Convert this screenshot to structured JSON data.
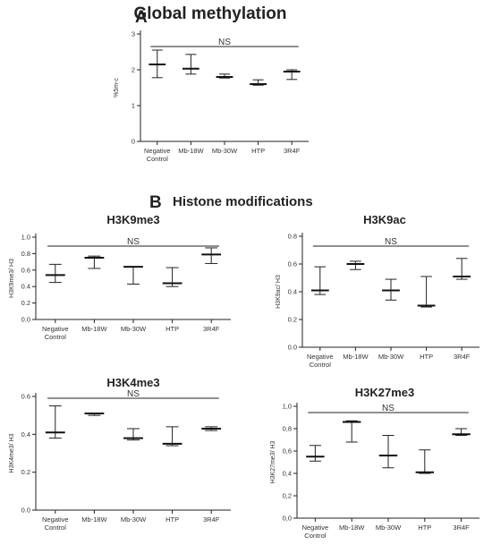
{
  "panel_labels": {
    "a": "A",
    "b": "B"
  },
  "section_title_b": "Histone modifications",
  "chart_data": [
    {
      "id": "global",
      "type": "scatter",
      "title": "Global methylation",
      "ylabel": "%5m-c",
      "ylim": [
        0,
        3
      ],
      "yticks": [
        "0",
        "1",
        "2",
        "3"
      ],
      "categories": [
        "Negative|Control",
        "Mb-18W",
        "Mb-30W",
        "HTP",
        "3R4F"
      ],
      "means": [
        2.15,
        2.03,
        1.8,
        1.6,
        1.95
      ],
      "err_low": [
        1.78,
        1.88,
        1.77,
        1.57,
        1.73
      ],
      "err_high": [
        2.55,
        2.43,
        1.88,
        1.72,
        2.0
      ],
      "annotation": "NS"
    },
    {
      "id": "h3k9me3",
      "type": "scatter",
      "title": "H3K9me3",
      "ylabel": "H3K9me3/ H3",
      "ylim": [
        0,
        1
      ],
      "yticks": [
        "0.0",
        "0.2",
        "0.4",
        "0.6",
        "0.8",
        "1.0"
      ],
      "categories": [
        "Negative|Control",
        "Mb-18W",
        "Mb-30W",
        "HTP",
        "3R4F"
      ],
      "means": [
        0.54,
        0.75,
        0.64,
        0.44,
        0.79
      ],
      "err_low": [
        0.45,
        0.62,
        0.43,
        0.4,
        0.68
      ],
      "err_high": [
        0.67,
        0.77,
        0.64,
        0.63,
        0.87
      ],
      "annotation": "NS"
    },
    {
      "id": "h3k9ac",
      "type": "scatter",
      "title": "H3K9ac",
      "ylabel": "H3K9ac/ H3",
      "ylim": [
        0,
        0.8
      ],
      "yticks": [
        "0.0",
        "0.2",
        "0.4",
        "0.6",
        "0.8"
      ],
      "categories": [
        "Negative|Control",
        "Mb-18W",
        "Mb-30W",
        "HTP",
        "3R4F"
      ],
      "means": [
        0.41,
        0.6,
        0.41,
        0.3,
        0.51
      ],
      "err_low": [
        0.38,
        0.56,
        0.34,
        0.29,
        0.49
      ],
      "err_high": [
        0.58,
        0.62,
        0.49,
        0.51,
        0.64
      ],
      "annotation": "NS"
    },
    {
      "id": "h3k4me3",
      "type": "scatter",
      "title": "H3K4me3",
      "ylabel": "H3K4me3/ H3",
      "ylim": [
        0,
        0.6
      ],
      "yticks": [
        "0.0",
        "0.2",
        "0.4",
        "0.6"
      ],
      "categories": [
        "Negative|Control",
        "Mb-18W",
        "Mb-30W",
        "HTP",
        "3R4F"
      ],
      "means": [
        0.41,
        0.51,
        0.38,
        0.35,
        0.43
      ],
      "err_low": [
        0.38,
        0.5,
        0.37,
        0.34,
        0.42
      ],
      "err_high": [
        0.55,
        0.51,
        0.43,
        0.44,
        0.44
      ],
      "annotation": "NS"
    },
    {
      "id": "h3k27me3",
      "type": "scatter",
      "title": "H3K27me3",
      "ylabel": "H3K27me3/ H3",
      "ylim": [
        0,
        1
      ],
      "yticks": [
        "0,0",
        "0,2",
        "0,4",
        "0,6",
        "0,8",
        "1,0"
      ],
      "categories": [
        "Negative|Control",
        "Mb-18W",
        "Mb-30W",
        "HTP",
        "3R4F"
      ],
      "means": [
        0.55,
        0.86,
        0.56,
        0.41,
        0.75
      ],
      "err_low": [
        0.51,
        0.68,
        0.45,
        0.4,
        0.74
      ],
      "err_high": [
        0.65,
        0.87,
        0.74,
        0.61,
        0.8
      ],
      "annotation": "NS"
    }
  ]
}
